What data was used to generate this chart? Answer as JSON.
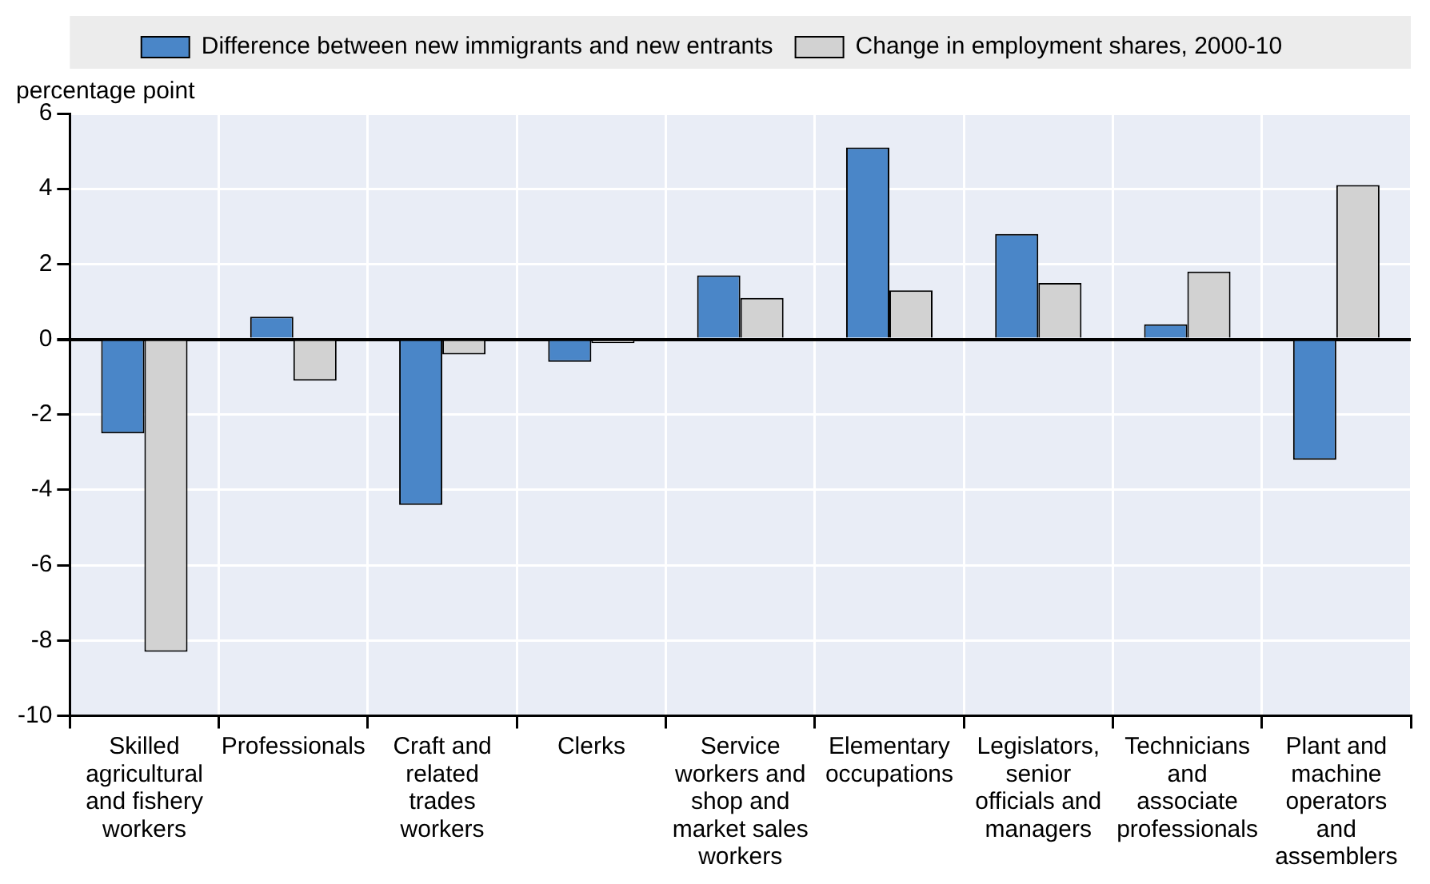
{
  "chart_data": {
    "type": "bar",
    "ylabel": "percentage point",
    "categories": [
      "Skilled agricultural and fishery workers",
      "Professionals",
      "Craft and related trades workers",
      "Clerks",
      "Service workers and shop and market sales workers",
      "Elementary occupations",
      "Legislators, senior officials and managers",
      "Technicians and associate professionals",
      "Plant and machine operators and assemblers"
    ],
    "series": [
      {
        "name": "Difference between new immigrants and new entrants",
        "color": "#4a86c8",
        "values": [
          -2.5,
          0.6,
          -4.4,
          -0.6,
          1.7,
          5.1,
          2.8,
          0.4,
          -3.2
        ]
      },
      {
        "name": "Change in employment shares, 2000-10",
        "color": "#d2d2d2",
        "values": [
          -8.3,
          -1.1,
          -0.4,
          -0.1,
          1.1,
          1.3,
          1.5,
          1.8,
          4.1
        ]
      }
    ],
    "ylim": [
      -10,
      6
    ],
    "yticks": [
      -10,
      -8,
      -6,
      -4,
      -2,
      0,
      2,
      4,
      6
    ],
    "grid": true,
    "legend": "top"
  }
}
